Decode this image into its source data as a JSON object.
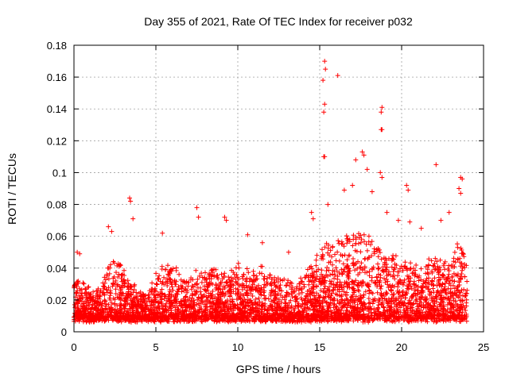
{
  "chart_data": {
    "type": "scatter",
    "title": "Day 355 of 2021, Rate Of TEC Index for receiver p032",
    "xlabel": "GPS time / hours",
    "ylabel": "ROTI / TECUs",
    "xlim": [
      0,
      25
    ],
    "ylim": [
      0,
      0.18
    ],
    "xticks": [
      0,
      5,
      10,
      15,
      20,
      25
    ],
    "xtick_labels": [
      "0",
      "5",
      "10",
      "15",
      "20",
      "25"
    ],
    "yticks": [
      0,
      0.02,
      0.04,
      0.06,
      0.08,
      0.1,
      0.12,
      0.14,
      0.16,
      0.18
    ],
    "ytick_labels": [
      "0",
      "0.02",
      "0.04",
      "0.06",
      "0.08",
      "0.1",
      "0.12",
      "0.14",
      "0.16",
      "0.18"
    ],
    "grid": true,
    "marker": "+",
    "color": "#ff0000",
    "outliers": [
      [
        15.3,
        0.17
      ],
      [
        15.35,
        0.165
      ],
      [
        15.2,
        0.158
      ],
      [
        16.1,
        0.161
      ],
      [
        15.3,
        0.143
      ],
      [
        15.25,
        0.138
      ],
      [
        18.8,
        0.141
      ],
      [
        18.75,
        0.138
      ],
      [
        18.8,
        0.127
      ],
      [
        18.75,
        0.127
      ],
      [
        15.3,
        0.11
      ],
      [
        15.25,
        0.11
      ],
      [
        17.6,
        0.113
      ],
      [
        17.7,
        0.111
      ],
      [
        17.2,
        0.108
      ],
      [
        17.9,
        0.102
      ],
      [
        22.1,
        0.105
      ],
      [
        18.7,
        0.1
      ],
      [
        18.8,
        0.097
      ],
      [
        20.3,
        0.092
      ],
      [
        20.4,
        0.089
      ],
      [
        23.6,
        0.097
      ],
      [
        23.7,
        0.096
      ],
      [
        23.5,
        0.09
      ],
      [
        23.6,
        0.087
      ],
      [
        3.4,
        0.084
      ],
      [
        3.45,
        0.082
      ],
      [
        3.6,
        0.071
      ],
      [
        7.5,
        0.078
      ],
      [
        7.6,
        0.072
      ],
      [
        9.2,
        0.072
      ],
      [
        9.3,
        0.07
      ],
      [
        10.6,
        0.061
      ],
      [
        14.5,
        0.075
      ],
      [
        14.6,
        0.071
      ],
      [
        15.5,
        0.08
      ],
      [
        16.5,
        0.089
      ],
      [
        17.0,
        0.092
      ],
      [
        18.2,
        0.088
      ],
      [
        19.1,
        0.075
      ],
      [
        19.8,
        0.07
      ],
      [
        20.5,
        0.069
      ],
      [
        21.2,
        0.065
      ],
      [
        22.4,
        0.07
      ],
      [
        22.9,
        0.075
      ],
      [
        2.1,
        0.066
      ],
      [
        2.3,
        0.063
      ],
      [
        5.4,
        0.062
      ],
      [
        11.5,
        0.056
      ],
      [
        13.1,
        0.05
      ],
      [
        0.2,
        0.05
      ],
      [
        0.35,
        0.049
      ]
    ],
    "density_profile": [
      [
        0.0,
        0.03
      ],
      [
        0.5,
        0.034
      ],
      [
        1.0,
        0.026
      ],
      [
        1.5,
        0.028
      ],
      [
        2.0,
        0.04
      ],
      [
        2.5,
        0.048
      ],
      [
        3.0,
        0.04
      ],
      [
        3.5,
        0.03
      ],
      [
        4.0,
        0.025
      ],
      [
        4.5,
        0.022
      ],
      [
        5.0,
        0.036
      ],
      [
        5.5,
        0.045
      ],
      [
        6.0,
        0.04
      ],
      [
        6.5,
        0.038
      ],
      [
        7.0,
        0.032
      ],
      [
        7.5,
        0.04
      ],
      [
        8.0,
        0.038
      ],
      [
        8.5,
        0.04
      ],
      [
        9.0,
        0.036
      ],
      [
        9.5,
        0.038
      ],
      [
        10.0,
        0.042
      ],
      [
        10.5,
        0.04
      ],
      [
        11.0,
        0.038
      ],
      [
        11.5,
        0.04
      ],
      [
        12.0,
        0.036
      ],
      [
        12.5,
        0.034
      ],
      [
        13.0,
        0.034
      ],
      [
        13.5,
        0.03
      ],
      [
        14.0,
        0.034
      ],
      [
        14.5,
        0.042
      ],
      [
        15.0,
        0.05
      ],
      [
        15.5,
        0.06
      ],
      [
        16.0,
        0.055
      ],
      [
        16.5,
        0.06
      ],
      [
        17.0,
        0.062
      ],
      [
        17.5,
        0.065
      ],
      [
        18.0,
        0.062
      ],
      [
        18.5,
        0.055
      ],
      [
        19.0,
        0.05
      ],
      [
        19.5,
        0.048
      ],
      [
        20.0,
        0.045
      ],
      [
        20.5,
        0.042
      ],
      [
        21.0,
        0.042
      ],
      [
        21.5,
        0.044
      ],
      [
        22.0,
        0.045
      ],
      [
        22.5,
        0.044
      ],
      [
        23.0,
        0.04
      ],
      [
        23.5,
        0.06
      ],
      [
        24.0,
        0.04
      ]
    ],
    "baseline": 0.008,
    "x_range": [
      0,
      24
    ],
    "point_count": 4200,
    "seed": 355
  }
}
